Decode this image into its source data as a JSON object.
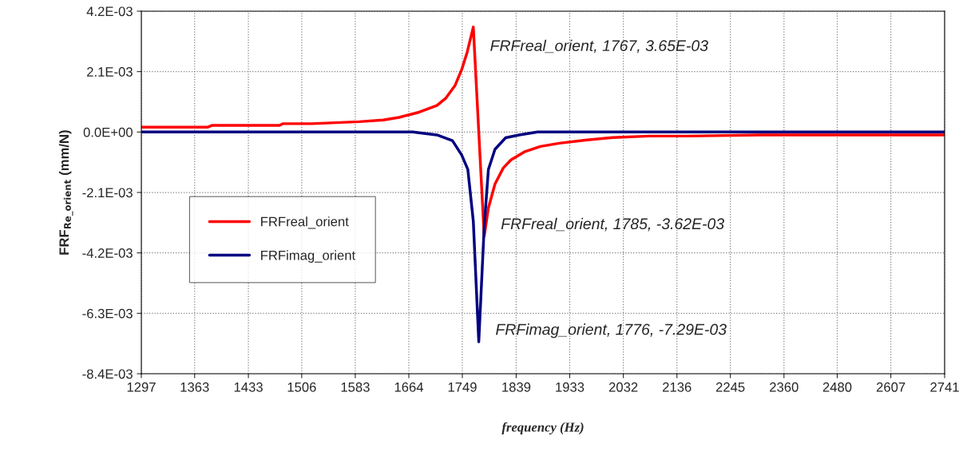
{
  "chart_data": {
    "type": "line",
    "xlabel": "frequency (Hz)",
    "ylabel": "FRF$_{Re_orient}$ (mm/N)",
    "log": "x",
    "grid": true,
    "legend": "left",
    "marker": "none",
    "line_style": "solid",
    "xlim": [
      1297,
      2741
    ],
    "xticks": [
      1297,
      1363,
      1433,
      1506,
      1583,
      1664,
      1749,
      1839,
      1933,
      2032,
      2136,
      2245,
      2360,
      2480,
      2607,
      2741
    ],
    "ylim": [
      -0.0084,
      0.0042
    ],
    "yticks": [
      {
        "value": 0.0042,
        "label": "4.2E-03"
      },
      {
        "value": 0.0021,
        "label": "2.1E-03"
      },
      {
        "value": 0,
        "label": "0.0E+00"
      },
      {
        "value": -0.0021,
        "label": "-2.1E-03"
      },
      {
        "value": -0.0042,
        "label": "-4.2E-03"
      },
      {
        "value": -0.0063,
        "label": "-6.3E-03"
      },
      {
        "value": -0.0084,
        "label": "-8.4E-03"
      }
    ],
    "series": [
      {
        "name": "FRFreal_orient",
        "color": "#ff0000",
        "x": [
          1297,
          1380,
          1385,
          1475,
          1480,
          1520,
          1589,
          1625,
          1649,
          1680,
          1708,
          1722,
          1737,
          1748,
          1757,
          1767,
          1785,
          1792,
          1803,
          1817,
          1830,
          1853,
          1881,
          1914,
          1961,
          2012,
          2082,
          2156,
          2310,
          2688,
          2741
        ],
        "values": [
          0.00017,
          0.00017,
          0.00023,
          0.00023,
          0.00029,
          0.00029,
          0.00036,
          0.00042,
          0.00051,
          0.00069,
          0.00092,
          0.00117,
          0.00161,
          0.00217,
          0.00278,
          0.00365,
          -0.00362,
          -0.00264,
          -0.00181,
          -0.00125,
          -0.00097,
          -0.00069,
          -0.0005,
          -0.00039,
          -0.00028,
          -0.00019,
          -0.00014,
          -0.00014,
          -0.0001,
          -0.0001,
          -0.0001
        ]
      },
      {
        "name": "FRFimag_orient",
        "color": "#000080",
        "x": [
          1297,
          1670,
          1708,
          1733,
          1748,
          1758,
          1767,
          1776,
          1785,
          1792,
          1803,
          1821,
          1844,
          1876,
          2741
        ],
        "values": [
          0,
          0,
          -0.0001,
          -0.0003,
          -0.0008,
          -0.0013,
          -0.0031,
          -0.00729,
          -0.0033,
          -0.0013,
          -0.0006,
          -0.0002,
          -0.0001,
          0,
          0
        ]
      }
    ],
    "annotations": [
      {
        "text": "FRFreal_orient, 1767, 3.65E-03",
        "x": 1767,
        "y": 0.00365
      },
      {
        "text": "FRFreal_orient, 1785, -3.62E-03",
        "x": 1785,
        "y": -0.00362
      },
      {
        "text": "FRFimag_orient, 1776, -7.29E-03",
        "x": 1776,
        "y": -0.00729
      }
    ]
  }
}
